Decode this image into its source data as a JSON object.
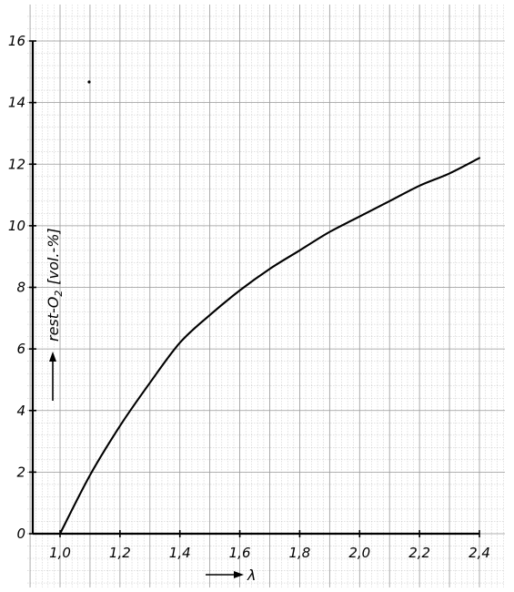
{
  "chart_data": {
    "type": "line",
    "title": "",
    "xlabel": "λ",
    "ylabel_main": "rest-O",
    "ylabel_sub": "2",
    "ylabel_unit": "[vol.-%]",
    "xlim": [
      1.0,
      2.4
    ],
    "ylim": [
      0,
      16
    ],
    "x_ticks": [
      1.0,
      1.2,
      1.4,
      1.6,
      1.8,
      2.0,
      2.2,
      2.4
    ],
    "x_tick_labels": [
      "1,0",
      "1,2",
      "1,4",
      "1,6",
      "1,8",
      "2,0",
      "2,2",
      "2,4"
    ],
    "y_ticks": [
      0,
      2,
      4,
      6,
      8,
      10,
      12,
      14,
      16
    ],
    "y_tick_labels": [
      "0",
      "2",
      "4",
      "6",
      "8",
      "10",
      "12",
      "14",
      "16"
    ],
    "grid": true,
    "series": [
      {
        "x": [
          1.0,
          1.1,
          1.2,
          1.3,
          1.4,
          1.5,
          1.6,
          1.7,
          1.8,
          1.9,
          2.0,
          2.1,
          2.2,
          2.3,
          2.4
        ],
        "y": [
          0,
          1.9,
          3.5,
          4.9,
          6.2,
          7.1,
          7.9,
          8.6,
          9.2,
          9.8,
          10.3,
          10.8,
          11.3,
          11.7,
          12.2
        ]
      }
    ]
  }
}
